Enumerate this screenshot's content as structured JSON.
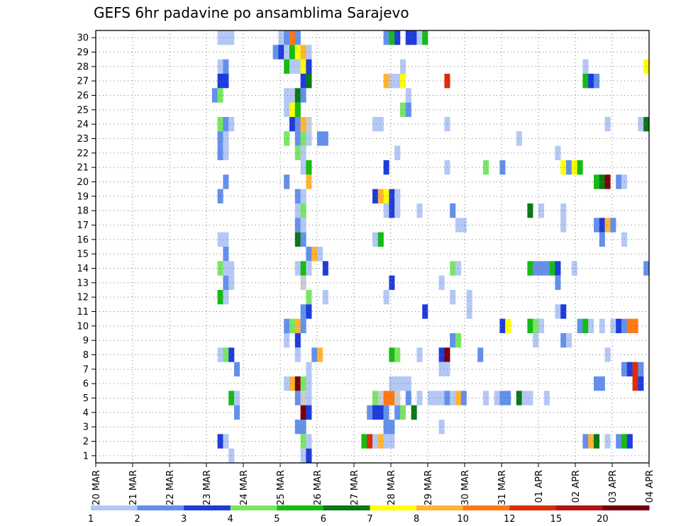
{
  "chart_data": {
    "type": "heatmap",
    "title": "GEFS 6hr padavine po ansamblima Sarajevo",
    "xlabel": "",
    "ylabel": "",
    "x_tick_labels": [
      "20 MAR",
      "21 MAR",
      "22 MAR",
      "23 MAR",
      "24 MAR",
      "25 MAR",
      "26 MAR",
      "27 MAR",
      "28 MAR",
      "29 MAR",
      "30 MAR",
      "31 MAR",
      "01 APR",
      "02 APR",
      "03 APR",
      "04 APR"
    ],
    "y_tick_labels": [
      "1",
      "2",
      "3",
      "4",
      "5",
      "6",
      "7",
      "8",
      "9",
      "10",
      "11",
      "12",
      "13",
      "14",
      "15",
      "16",
      "17",
      "18",
      "19",
      "20",
      "21",
      "22",
      "23",
      "24",
      "25",
      "26",
      "27",
      "28",
      "29",
      "30"
    ],
    "x_range": [
      "20 MAR 00Z",
      "04 APR 00Z"
    ],
    "time_step_hours": 6,
    "y_range": [
      0,
      30
    ],
    "grid": "dotted",
    "colorbar": {
      "labels": [
        "1",
        "2",
        "3",
        "4",
        "5",
        "6",
        "7",
        "8",
        "10",
        "12",
        "15",
        "20"
      ],
      "colors": [
        "#b4c8f5",
        "#6490eb",
        "#1e3cdc",
        "#78e664",
        "#14bc14",
        "#0a7814",
        "#ffff00",
        "#ffb432",
        "#ff7814",
        "#dc2d0a",
        "#b41414",
        "#78000a"
      ]
    },
    "cells": [
      [
        30,
        22,
        1
      ],
      [
        30,
        23,
        1
      ],
      [
        30,
        24,
        1
      ],
      [
        30,
        33,
        1
      ],
      [
        30,
        34,
        2
      ],
      [
        30,
        35,
        10
      ],
      [
        30,
        36,
        2
      ],
      [
        30,
        52,
        2
      ],
      [
        30,
        53,
        5
      ],
      [
        30,
        54,
        3
      ],
      [
        30,
        56,
        3
      ],
      [
        30,
        57,
        3
      ],
      [
        30,
        58,
        1
      ],
      [
        30,
        59,
        5
      ],
      [
        29,
        32,
        2
      ],
      [
        29,
        33,
        3
      ],
      [
        29,
        34,
        1
      ],
      [
        29,
        35,
        5
      ],
      [
        29,
        36,
        7
      ],
      [
        29,
        37,
        8
      ],
      [
        29,
        38,
        1
      ],
      [
        28,
        22,
        1
      ],
      [
        28,
        23,
        2
      ],
      [
        28,
        34,
        5
      ],
      [
        28,
        35,
        1
      ],
      [
        28,
        36,
        1
      ],
      [
        28,
        37,
        7
      ],
      [
        28,
        38,
        3
      ],
      [
        28,
        55,
        1
      ],
      [
        28,
        88,
        1
      ],
      [
        28,
        99,
        7
      ],
      [
        27,
        22,
        3
      ],
      [
        27,
        23,
        3
      ],
      [
        27,
        37,
        3
      ],
      [
        27,
        38,
        6
      ],
      [
        27,
        52,
        8
      ],
      [
        27,
        53,
        1
      ],
      [
        27,
        54,
        1
      ],
      [
        27,
        55,
        7
      ],
      [
        27,
        63,
        12
      ],
      [
        27,
        88,
        5
      ],
      [
        27,
        89,
        3
      ],
      [
        27,
        90,
        2
      ],
      [
        26,
        21,
        2
      ],
      [
        26,
        22,
        4
      ],
      [
        26,
        34,
        1
      ],
      [
        26,
        35,
        1
      ],
      [
        26,
        36,
        6
      ],
      [
        26,
        37,
        2
      ],
      [
        26,
        56,
        1
      ],
      [
        25,
        34,
        1
      ],
      [
        25,
        35,
        7
      ],
      [
        25,
        36,
        5
      ],
      [
        25,
        55,
        4
      ],
      [
        25,
        56,
        2
      ],
      [
        24,
        22,
        4
      ],
      [
        24,
        23,
        2
      ],
      [
        24,
        24,
        1
      ],
      [
        24,
        35,
        3
      ],
      [
        24,
        36,
        2
      ],
      [
        24,
        37,
        8
      ],
      [
        24,
        38,
        11
      ],
      [
        24,
        50,
        1
      ],
      [
        24,
        51,
        1
      ],
      [
        24,
        63,
        1
      ],
      [
        24,
        92,
        1
      ],
      [
        24,
        98,
        1
      ],
      [
        24,
        99,
        6
      ],
      [
        23,
        22,
        2
      ],
      [
        23,
        23,
        1
      ],
      [
        23,
        34,
        4
      ],
      [
        23,
        36,
        2
      ],
      [
        23,
        37,
        4
      ],
      [
        23,
        38,
        1
      ],
      [
        23,
        40,
        2
      ],
      [
        23,
        41,
        2
      ],
      [
        23,
        76,
        1
      ],
      [
        22,
        22,
        2
      ],
      [
        22,
        23,
        1
      ],
      [
        22,
        36,
        4
      ],
      [
        22,
        37,
        1
      ],
      [
        22,
        54,
        1
      ],
      [
        22,
        83,
        1
      ],
      [
        21,
        37,
        1
      ],
      [
        21,
        38,
        5
      ],
      [
        21,
        52,
        3
      ],
      [
        21,
        63,
        1
      ],
      [
        21,
        70,
        4
      ],
      [
        21,
        73,
        2
      ],
      [
        21,
        84,
        7
      ],
      [
        21,
        85,
        2
      ],
      [
        21,
        86,
        7
      ],
      [
        21,
        87,
        5
      ],
      [
        20,
        23,
        2
      ],
      [
        20,
        34,
        2
      ],
      [
        20,
        38,
        8
      ],
      [
        20,
        90,
        5
      ],
      [
        20,
        91,
        6
      ],
      [
        20,
        92,
        20
      ],
      [
        20,
        94,
        2
      ],
      [
        20,
        95,
        1
      ],
      [
        19,
        22,
        2
      ],
      [
        19,
        36,
        2
      ],
      [
        19,
        37,
        1
      ],
      [
        19,
        50,
        3
      ],
      [
        19,
        51,
        8
      ],
      [
        19,
        52,
        7
      ],
      [
        19,
        53,
        3
      ],
      [
        19,
        54,
        1
      ],
      [
        18,
        36,
        1
      ],
      [
        18,
        37,
        4
      ],
      [
        18,
        52,
        1
      ],
      [
        18,
        53,
        3
      ],
      [
        18,
        54,
        1
      ],
      [
        18,
        58,
        1
      ],
      [
        18,
        64,
        2
      ],
      [
        18,
        78,
        6
      ],
      [
        18,
        80,
        1
      ],
      [
        18,
        84,
        1
      ],
      [
        17,
        36,
        2
      ],
      [
        17,
        37,
        1
      ],
      [
        17,
        65,
        1
      ],
      [
        17,
        66,
        1
      ],
      [
        17,
        84,
        1
      ],
      [
        17,
        90,
        2
      ],
      [
        17,
        91,
        3
      ],
      [
        17,
        92,
        8
      ],
      [
        17,
        93,
        2
      ],
      [
        16,
        22,
        1
      ],
      [
        16,
        23,
        1
      ],
      [
        16,
        36,
        6
      ],
      [
        16,
        37,
        2
      ],
      [
        16,
        50,
        1
      ],
      [
        16,
        51,
        5
      ],
      [
        16,
        91,
        2
      ],
      [
        16,
        95,
        1
      ],
      [
        15,
        23,
        2
      ],
      [
        15,
        38,
        2
      ],
      [
        15,
        39,
        8
      ],
      [
        15,
        40,
        1
      ],
      [
        14,
        22,
        4
      ],
      [
        14,
        23,
        1
      ],
      [
        14,
        24,
        1
      ],
      [
        14,
        36,
        1
      ],
      [
        14,
        37,
        5
      ],
      [
        14,
        38,
        1
      ],
      [
        14,
        41,
        3
      ],
      [
        14,
        64,
        4
      ],
      [
        14,
        65,
        1
      ],
      [
        14,
        78,
        5
      ],
      [
        14,
        79,
        2
      ],
      [
        14,
        80,
        2
      ],
      [
        14,
        81,
        2
      ],
      [
        14,
        82,
        5
      ],
      [
        14,
        83,
        3
      ],
      [
        14,
        86,
        1
      ],
      [
        14,
        99,
        2
      ],
      [
        13,
        23,
        2
      ],
      [
        13,
        24,
        1
      ],
      [
        13,
        37,
        13
      ],
      [
        13,
        53,
        3
      ],
      [
        13,
        62,
        1
      ],
      [
        13,
        83,
        2
      ],
      [
        12,
        22,
        5
      ],
      [
        12,
        23,
        1
      ],
      [
        12,
        38,
        4
      ],
      [
        12,
        41,
        1
      ],
      [
        12,
        52,
        1
      ],
      [
        12,
        64,
        1
      ],
      [
        12,
        67,
        1
      ],
      [
        11,
        37,
        2
      ],
      [
        11,
        38,
        3
      ],
      [
        11,
        59,
        3
      ],
      [
        11,
        67,
        1
      ],
      [
        11,
        83,
        1
      ],
      [
        11,
        84,
        3
      ],
      [
        10,
        34,
        2
      ],
      [
        10,
        35,
        4
      ],
      [
        10,
        36,
        8
      ],
      [
        10,
        37,
        2
      ],
      [
        10,
        73,
        3
      ],
      [
        10,
        74,
        7
      ],
      [
        10,
        78,
        5
      ],
      [
        10,
        79,
        4
      ],
      [
        10,
        80,
        1
      ],
      [
        10,
        87,
        2
      ],
      [
        10,
        88,
        5
      ],
      [
        10,
        89,
        1
      ],
      [
        10,
        91,
        1
      ],
      [
        10,
        93,
        1
      ],
      [
        10,
        94,
        3
      ],
      [
        10,
        95,
        2
      ],
      [
        10,
        96,
        10
      ],
      [
        10,
        97,
        10
      ],
      [
        9,
        34,
        1
      ],
      [
        9,
        36,
        3
      ],
      [
        9,
        64,
        2
      ],
      [
        9,
        65,
        4
      ],
      [
        9,
        79,
        1
      ],
      [
        9,
        84,
        2
      ],
      [
        9,
        85,
        1
      ],
      [
        8,
        22,
        1
      ],
      [
        8,
        23,
        4
      ],
      [
        8,
        24,
        3
      ],
      [
        8,
        36,
        1
      ],
      [
        8,
        39,
        2
      ],
      [
        8,
        40,
        8
      ],
      [
        8,
        53,
        5
      ],
      [
        8,
        54,
        4
      ],
      [
        8,
        58,
        1
      ],
      [
        8,
        62,
        3
      ],
      [
        8,
        63,
        20
      ],
      [
        8,
        69,
        2
      ],
      [
        8,
        92,
        1
      ],
      [
        7,
        25,
        2
      ],
      [
        7,
        38,
        1
      ],
      [
        7,
        62,
        1
      ],
      [
        7,
        63,
        1
      ],
      [
        7,
        95,
        2
      ],
      [
        7,
        96,
        3
      ],
      [
        7,
        97,
        12
      ],
      [
        7,
        98,
        2
      ],
      [
        6,
        34,
        1
      ],
      [
        6,
        35,
        8
      ],
      [
        6,
        36,
        20
      ],
      [
        6,
        37,
        4
      ],
      [
        6,
        38,
        1
      ],
      [
        6,
        53,
        1
      ],
      [
        6,
        54,
        1
      ],
      [
        6,
        55,
        1
      ],
      [
        6,
        56,
        1
      ],
      [
        6,
        90,
        2
      ],
      [
        6,
        91,
        2
      ],
      [
        6,
        97,
        12
      ],
      [
        6,
        98,
        3
      ],
      [
        5,
        24,
        5
      ],
      [
        5,
        25,
        1
      ],
      [
        5,
        36,
        2
      ],
      [
        5,
        37,
        13
      ],
      [
        5,
        38,
        1
      ],
      [
        5,
        50,
        4
      ],
      [
        5,
        51,
        11
      ],
      [
        5,
        52,
        10
      ],
      [
        5,
        53,
        10
      ],
      [
        5,
        54,
        13
      ],
      [
        5,
        56,
        2
      ],
      [
        5,
        58,
        1
      ],
      [
        5,
        60,
        1
      ],
      [
        5,
        61,
        1
      ],
      [
        5,
        62,
        1
      ],
      [
        5,
        63,
        2
      ],
      [
        5,
        64,
        1
      ],
      [
        5,
        65,
        8
      ],
      [
        5,
        66,
        2
      ],
      [
        5,
        70,
        1
      ],
      [
        5,
        72,
        1
      ],
      [
        5,
        73,
        2
      ],
      [
        5,
        74,
        2
      ],
      [
        5,
        76,
        6
      ],
      [
        5,
        77,
        1
      ],
      [
        5,
        78,
        1
      ],
      [
        5,
        81,
        1
      ],
      [
        4,
        25,
        2
      ],
      [
        4,
        37,
        20
      ],
      [
        4,
        38,
        3
      ],
      [
        4,
        49,
        2
      ],
      [
        4,
        50,
        3
      ],
      [
        4,
        51,
        3
      ],
      [
        4,
        52,
        2
      ],
      [
        4,
        54,
        2
      ],
      [
        4,
        55,
        4
      ],
      [
        4,
        57,
        6
      ],
      [
        3,
        36,
        2
      ],
      [
        3,
        37,
        2
      ],
      [
        3,
        52,
        2
      ],
      [
        3,
        53,
        2
      ],
      [
        3,
        62,
        1
      ],
      [
        2,
        22,
        3
      ],
      [
        2,
        23,
        1
      ],
      [
        2,
        37,
        4
      ],
      [
        2,
        38,
        1
      ],
      [
        2,
        48,
        5
      ],
      [
        2,
        49,
        12
      ],
      [
        2,
        50,
        1
      ],
      [
        2,
        51,
        8
      ],
      [
        2,
        52,
        1
      ],
      [
        2,
        53,
        1
      ],
      [
        2,
        88,
        2
      ],
      [
        2,
        89,
        8
      ],
      [
        2,
        90,
        6
      ],
      [
        2,
        92,
        1
      ],
      [
        2,
        94,
        2
      ],
      [
        2,
        95,
        5
      ],
      [
        2,
        96,
        3
      ],
      [
        1,
        24,
        1
      ],
      [
        1,
        37,
        1
      ],
      [
        1,
        38,
        3
      ]
    ]
  }
}
